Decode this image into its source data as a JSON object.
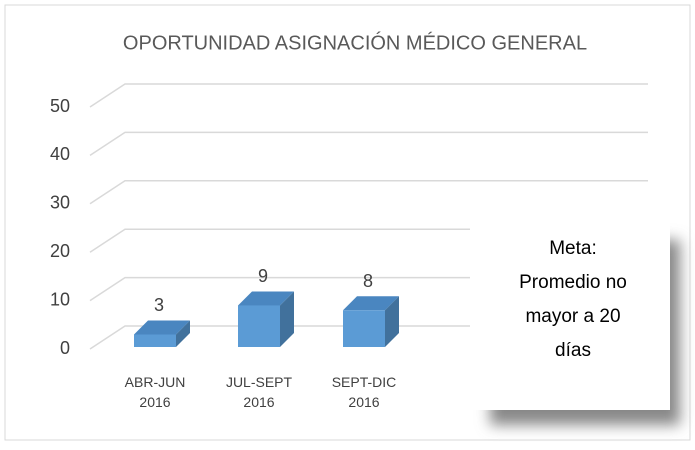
{
  "chart_data": {
    "type": "bar3d",
    "title": "OPORTUNIDAD ASIGNACIÓN MÉDICO GENERAL",
    "categories": [
      "ABR-JUN 2016",
      "JUL-SEPT 2016",
      "SEPT-DIC 2016"
    ],
    "values": [
      3,
      9,
      8
    ],
    "color": "#5b9bd5",
    "ylim": [
      0,
      50
    ],
    "yticks": [
      0,
      10,
      20,
      30,
      40,
      50
    ],
    "grid": true,
    "annotation": [
      "Meta:",
      "Promedio no",
      "mayor  a  20",
      "días"
    ]
  }
}
